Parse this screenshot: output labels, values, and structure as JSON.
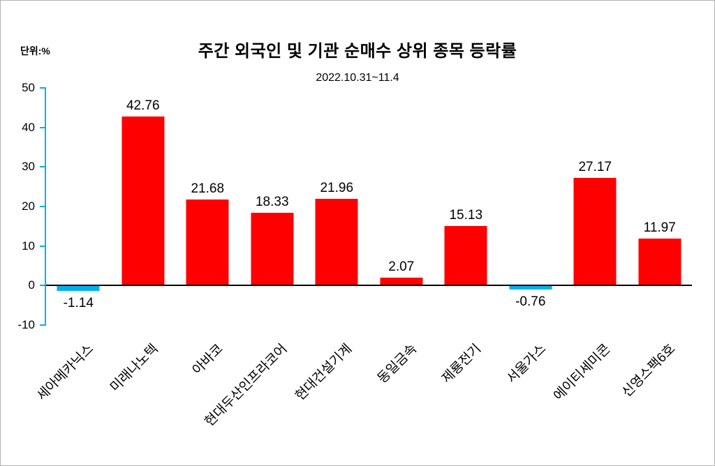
{
  "unit_label": "단위:%",
  "title": "주간 외국인 및 기관 순매수 상위 종목 등락률",
  "subtitle": "2022.10.31~11.4",
  "chart_data": {
    "type": "bar",
    "title": "주간 외국인 및 기관 순매수 상위 종목 등락률",
    "subtitle": "2022.10.31~11.4",
    "unit": "단위:%",
    "categories": [
      "세아메카닉스",
      "미래나노텍",
      "아바코",
      "현대두산인프라코어",
      "현대건설기계",
      "동일금속",
      "제룡전기",
      "서울가스",
      "에이티세미콘",
      "신영스팩6호"
    ],
    "values": [
      -1.14,
      42.76,
      21.68,
      18.33,
      21.96,
      2.07,
      15.13,
      -0.76,
      27.17,
      11.97
    ],
    "ylim": [
      -10,
      50
    ],
    "ytick_step": 10,
    "yticks": [
      50,
      40,
      30,
      20,
      10,
      0,
      -10
    ],
    "positive_color": "#ff0000",
    "negative_color": "#00b0f0",
    "axis_tick_color": "#00b0f0",
    "zero_line_color": "#000000",
    "grid": false,
    "legend": "none",
    "xlabel": "",
    "ylabel": ""
  }
}
